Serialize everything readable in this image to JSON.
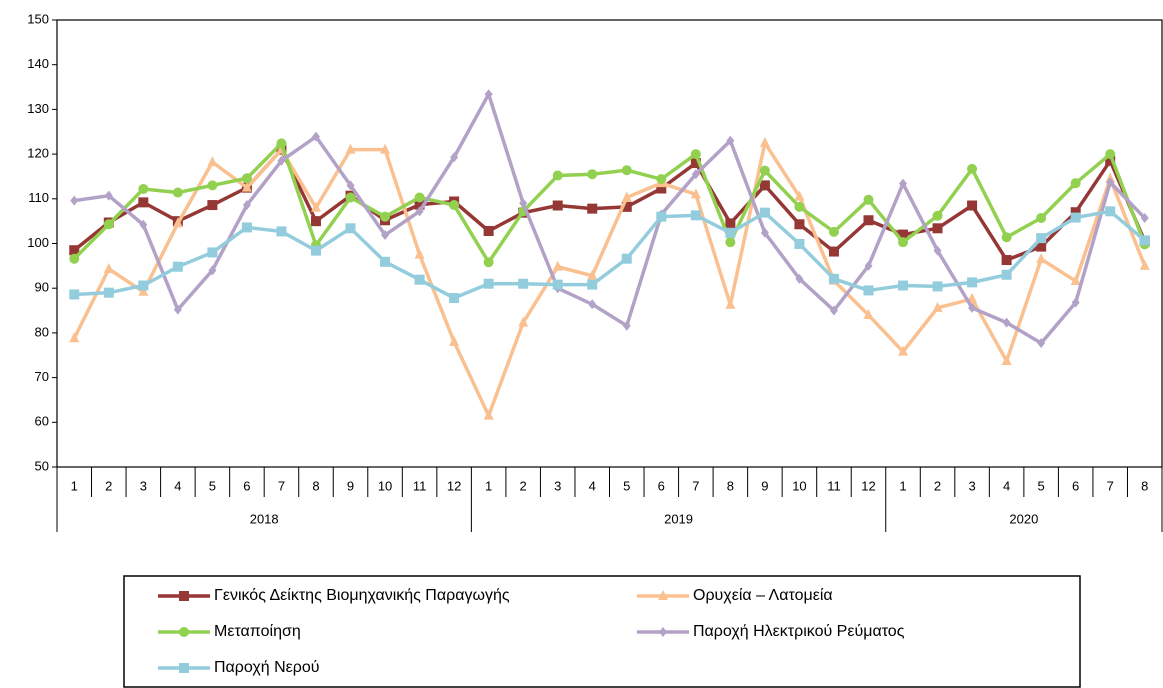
{
  "chart_data": {
    "type": "line",
    "categories": [
      "1",
      "2",
      "3",
      "4",
      "5",
      "6",
      "7",
      "8",
      "9",
      "10",
      "11",
      "12",
      "1",
      "2",
      "3",
      "4",
      "5",
      "6",
      "7",
      "8",
      "9",
      "10",
      "11",
      "12",
      "1",
      "2",
      "3",
      "4",
      "5",
      "6",
      "7",
      "8"
    ],
    "category_groups": [
      {
        "label": "2018",
        "span": 12
      },
      {
        "label": "2019",
        "span": 12
      },
      {
        "label": "2020",
        "span": 8
      }
    ],
    "ylim": [
      50,
      150
    ],
    "yticks": [
      50,
      60,
      70,
      80,
      90,
      100,
      110,
      120,
      130,
      140,
      150
    ],
    "grid": false,
    "series": [
      {
        "name": "Γενικός Δείκτης Βιομηχανικής Παραγωγής",
        "color": "#953735",
        "marker": "square",
        "values": [
          98.5,
          104.7,
          109.2,
          105,
          108.6,
          112.5,
          121,
          105,
          110.7,
          105.2,
          108.7,
          109.4,
          102.8,
          106.9,
          108.5,
          107.8,
          108.2,
          112.3,
          118,
          104.5,
          113,
          104.3,
          98.2,
          105.2,
          102,
          103.4,
          108.5,
          96.3,
          99.3,
          107,
          118.5,
          100.5
        ]
      },
      {
        "name": "Ορυχεία – Λατομεία",
        "color": "#fac090",
        "marker": "triangle",
        "values": [
          78.8,
          94.3,
          89.2,
          104.5,
          118.2,
          112.5,
          121,
          108,
          121,
          121,
          97.5,
          78,
          61.5,
          82.3,
          94.8,
          92.8,
          110.3,
          113.5,
          111,
          86.3,
          122.5,
          110.5,
          91.7,
          84,
          75.8,
          85.6,
          87.6,
          73.7,
          96.5,
          91.6,
          114.5,
          95
        ]
      },
      {
        "name": "Μεταποίηση",
        "color": "#92d050",
        "marker": "circle",
        "values": [
          96.6,
          104.3,
          112.2,
          111.4,
          113,
          114.6,
          122.4,
          99.6,
          110.3,
          106,
          110.3,
          108.6,
          95.8,
          107.2,
          115.2,
          115.5,
          116.4,
          114.4,
          120,
          100.3,
          116.3,
          108.2,
          102.6,
          109.8,
          100.3,
          106.2,
          116.7,
          101.4,
          105.7,
          113.5,
          120,
          99.8
        ]
      },
      {
        "name": "Παροχή Ηλεκτρικού Ρεύματος",
        "color": "#b3a2c7",
        "marker": "diamond",
        "values": [
          109.6,
          110.7,
          104.2,
          85.2,
          94,
          108.6,
          118.5,
          123.9,
          113,
          101.9,
          107.2,
          119.3,
          133.4,
          109,
          90,
          86.4,
          81.6,
          106.5,
          115.5,
          123,
          102.4,
          92.1,
          85,
          95,
          113.4,
          98.4,
          85.6,
          82.3,
          77.7,
          86.8,
          113.7,
          105.7
        ]
      },
      {
        "name": "Παροχή Νερού",
        "color": "#93cddd",
        "marker": "square",
        "values": [
          88.6,
          89,
          90.6,
          94.8,
          98,
          103.6,
          102.7,
          98.4,
          103.4,
          95.9,
          91.9,
          87.8,
          91,
          91,
          90.8,
          90.8,
          96.6,
          106,
          106.3,
          102.4,
          106.9,
          99.9,
          92.1,
          89.5,
          90.6,
          90.4,
          91.3,
          93,
          101.2,
          105.8,
          107.2,
          100.7
        ]
      }
    ]
  }
}
